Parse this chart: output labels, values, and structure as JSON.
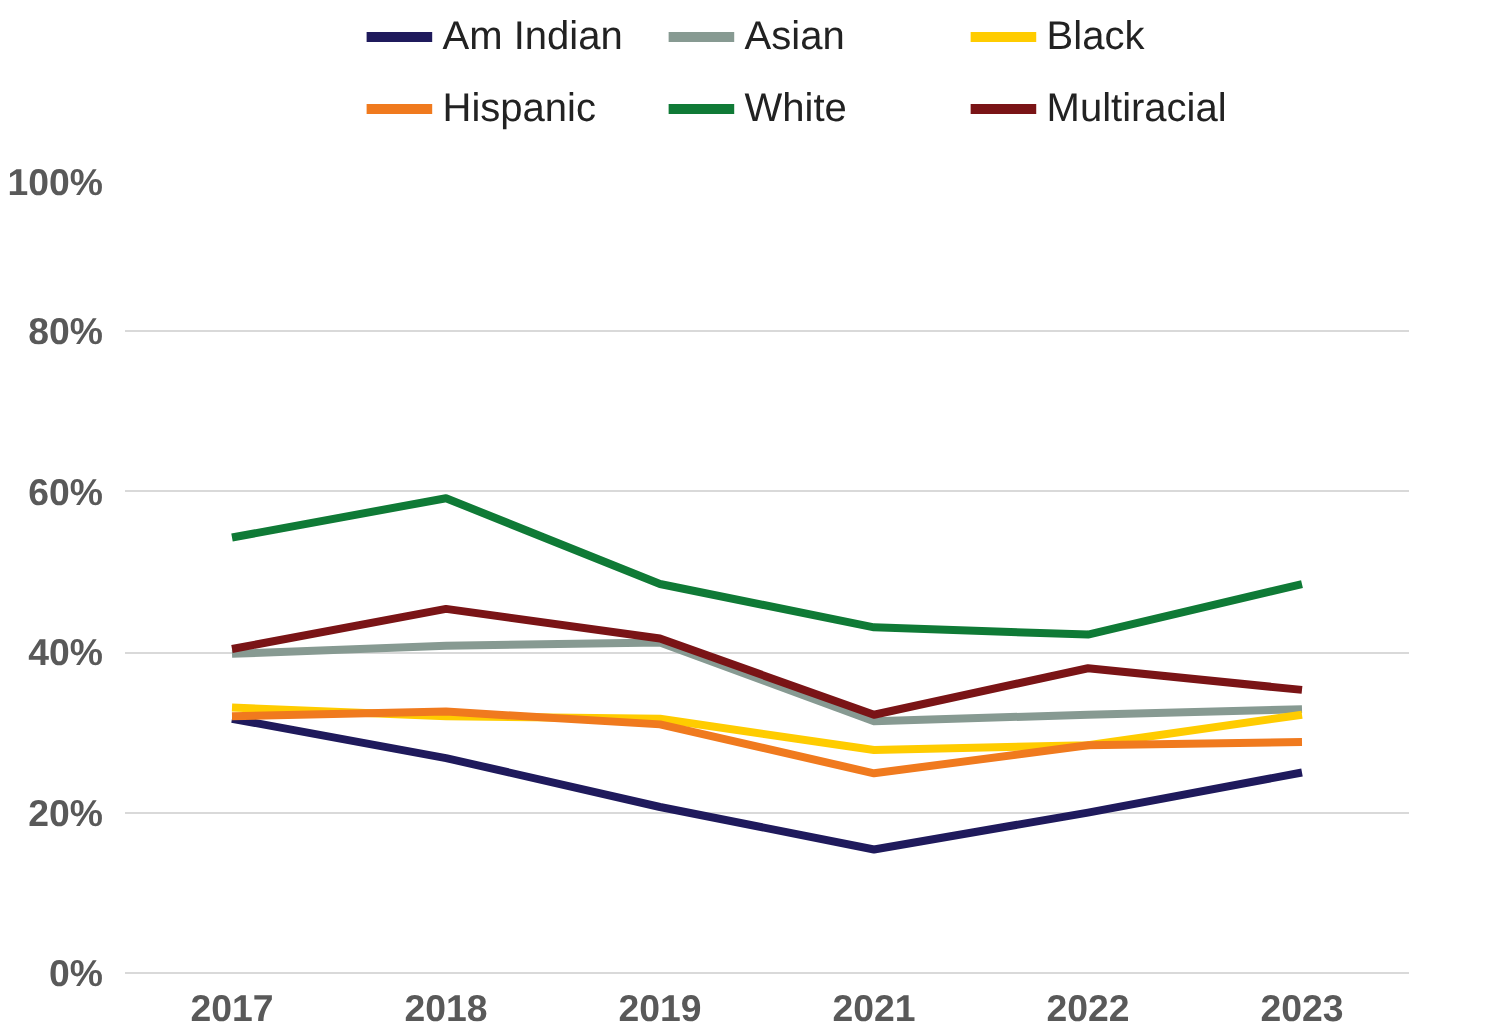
{
  "chart_data": {
    "type": "line",
    "categories": [
      "2017",
      "2018",
      "2019",
      "2021",
      "2022",
      "2023"
    ],
    "series": [
      {
        "name": "Am Indian",
        "color": "#1f1a5c",
        "values": [
          31.7,
          26.8,
          20.7,
          15.4,
          20,
          25
        ]
      },
      {
        "name": "Asian",
        "color": "#879a92",
        "values": [
          39.8,
          40.8,
          41.2,
          31.4,
          32.2,
          32.9
        ]
      },
      {
        "name": "Black",
        "color": "#ffcc00",
        "values": [
          33.1,
          32,
          31.7,
          27.8,
          28.4,
          32.2
        ]
      },
      {
        "name": "Hispanic",
        "color": "#f07a1e",
        "values": [
          32,
          32.6,
          31,
          24.9,
          28.4,
          28.8
        ]
      },
      {
        "name": "White",
        "color": "#0f7a36",
        "values": [
          54.3,
          59.2,
          48.5,
          43.1,
          42.2,
          48.5
        ]
      },
      {
        "name": "Multiracial",
        "color": "#7a1416",
        "values": [
          40.4,
          45.4,
          41.7,
          32.2,
          38,
          35.3
        ]
      }
    ],
    "ylim": [
      0,
      100
    ],
    "yticks": [
      {
        "value": 0,
        "label": "0%"
      },
      {
        "value": 20,
        "label": "20%"
      },
      {
        "value": 40,
        "label": "40%"
      },
      {
        "value": 60,
        "label": "60%"
      },
      {
        "value": 80,
        "label": "80%"
      },
      {
        "value": 100,
        "label": "100%"
      }
    ],
    "grid": "y",
    "legend": "top",
    "marker": "none",
    "line_style": "solid"
  }
}
